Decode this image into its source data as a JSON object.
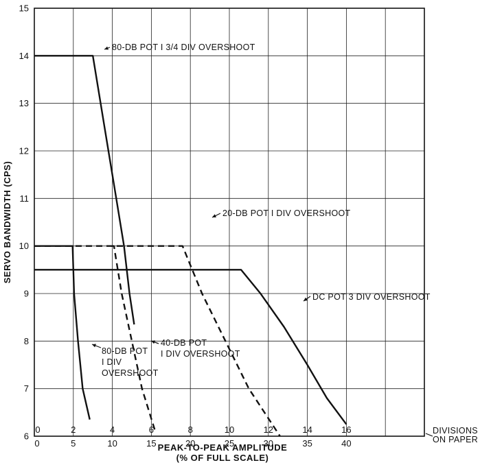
{
  "chart_data": {
    "type": "line",
    "xlabel": "PEAK-TO-PEAK AMPLITUDE",
    "xlabel2": "(% OF FULL SCALE)",
    "ylabel": "SERVO BANDWIDTH (CPS)",
    "xlim": [
      0,
      50
    ],
    "ylim": [
      6,
      15
    ],
    "x_ticks": [
      0,
      5,
      10,
      15,
      20,
      25,
      30,
      35,
      40
    ],
    "y_ticks": [
      6,
      7,
      8,
      9,
      10,
      11,
      12,
      13,
      14,
      15
    ],
    "divisions_ticks": [
      0,
      2,
      4,
      6,
      8,
      10,
      12,
      14,
      16
    ],
    "divisions_label_line1": "DIVISIONS",
    "divisions_label_line2": "ON PAPER",
    "grid": true,
    "series": [
      {
        "style": "solid",
        "points": [
          [
            0,
            14
          ],
          [
            7.5,
            14
          ],
          [
            9,
            12.5
          ],
          [
            10.5,
            11
          ],
          [
            11.5,
            10
          ],
          [
            12.2,
            9
          ],
          [
            12.8,
            8.35
          ]
        ]
      },
      {
        "style": "solid",
        "points": [
          [
            0,
            10
          ],
          [
            4.9,
            10
          ],
          [
            5.1,
            9
          ],
          [
            5.6,
            8
          ],
          [
            6.2,
            7
          ],
          [
            7.1,
            6.35
          ]
        ]
      },
      {
        "style": "dashed",
        "points": [
          [
            0,
            10
          ],
          [
            19,
            10
          ],
          [
            21.5,
            9
          ],
          [
            24.5,
            8
          ],
          [
            27.5,
            7
          ],
          [
            31.5,
            6
          ]
        ]
      },
      {
        "style": "dashed",
        "points": [
          [
            9.8,
            10
          ],
          [
            10.2,
            10
          ],
          [
            11.2,
            9
          ],
          [
            12.5,
            8
          ],
          [
            13.8,
            7
          ],
          [
            15.5,
            6.1
          ]
        ]
      },
      {
        "style": "solid",
        "points": [
          [
            0,
            9.5
          ],
          [
            26.5,
            9.5
          ],
          [
            29,
            9
          ],
          [
            32,
            8.3
          ],
          [
            35,
            7.5
          ],
          [
            37.5,
            6.8
          ],
          [
            40,
            6.25
          ]
        ]
      }
    ],
    "annotations": [
      {
        "lines": [
          "80-DB POT  I 3/4 DIV  OVERSHOOT"
        ]
      },
      {
        "lines": [
          "20-DB POT  I DIV  OVERSHOOT"
        ]
      },
      {
        "lines": [
          "DC POT  3 DIV  OVERSHOOT"
        ]
      },
      {
        "lines": [
          "80-DB POT",
          "I DIV",
          "OVERSHOOT"
        ]
      },
      {
        "lines": [
          "40-DB POT",
          "I DIV OVERSHOOT"
        ]
      }
    ]
  }
}
